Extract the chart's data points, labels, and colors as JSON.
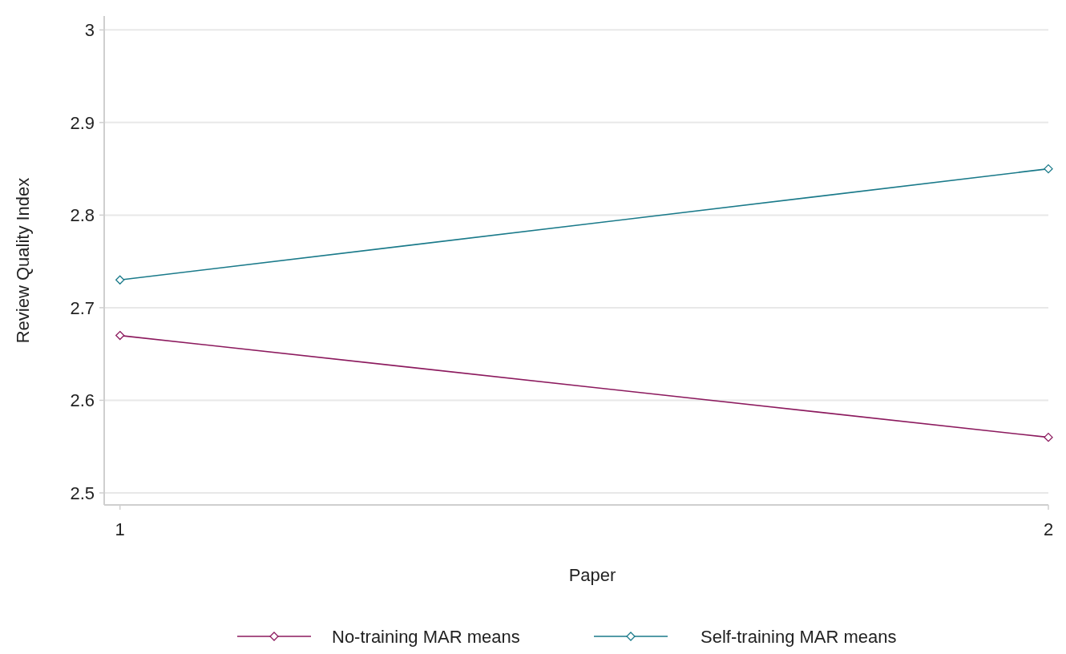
{
  "chart_data": {
    "type": "line",
    "xlabel": "Paper",
    "ylabel": "Review Quality Index",
    "x": [
      1,
      2
    ],
    "xlim": [
      0.983,
      2.0
    ],
    "xticks": [
      1,
      2
    ],
    "ylim": [
      2.487,
      3.015
    ],
    "yticks": [
      2.5,
      2.6,
      2.7,
      2.8,
      2.9,
      3
    ],
    "series": [
      {
        "name": "No-training MAR means",
        "color": "#8c1a5e",
        "values": [
          2.67,
          2.56
        ]
      },
      {
        "name": "Self-training MAR means",
        "color": "#1a7a8a",
        "values": [
          2.73,
          2.85
        ]
      }
    ],
    "marker": "diamond",
    "grid": "y",
    "legend": "bottom"
  }
}
